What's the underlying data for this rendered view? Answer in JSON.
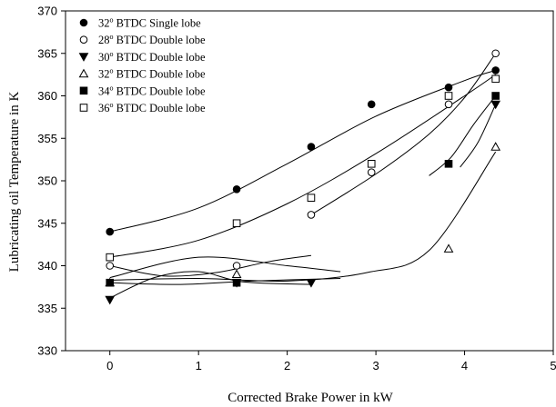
{
  "chart_data": {
    "type": "scatter",
    "title": "",
    "xlabel": "Corrected Brake Power in kW",
    "ylabel": "Lubricating oil Temperature in K",
    "xlim": [
      -0.5,
      5
    ],
    "ylim": [
      330,
      370
    ],
    "x_ticks": [
      0,
      1,
      2,
      3,
      4,
      5
    ],
    "y_ticks": [
      330,
      335,
      340,
      345,
      350,
      355,
      360,
      365,
      370
    ],
    "grid": false,
    "legend_position": "top-left",
    "curve_color": "#000000",
    "series": [
      {
        "name": "32° BTDC Single lobe",
        "name_parts": [
          "32",
          "o",
          " BTDC Single lobe"
        ],
        "marker": "filled-circle",
        "x": [
          0,
          1.43,
          2.27,
          2.95,
          3.82,
          4.35
        ],
        "y": [
          344,
          349,
          354,
          359,
          361,
          363
        ]
      },
      {
        "name": "28° BTDC Double lobe",
        "name_parts": [
          "28",
          "o",
          " BTDC Double lobe"
        ],
        "marker": "open-circle",
        "x": [
          0,
          1.43,
          2.27,
          2.95,
          3.82,
          4.35
        ],
        "y": [
          340,
          340,
          346,
          351,
          359,
          365
        ]
      },
      {
        "name": "30° BTDC Double lobe",
        "name_parts": [
          "30",
          "o",
          " BTDC Double lobe"
        ],
        "marker": "filled-triangle-down",
        "x": [
          0,
          1.43,
          2.27,
          4.35
        ],
        "y": [
          336,
          338,
          338,
          359
        ]
      },
      {
        "name": "32° BTDC Double lobe",
        "name_parts": [
          "32",
          "o",
          " BTDC Double lobe"
        ],
        "marker": "open-triangle-up",
        "x": [
          0,
          1.43,
          3.82,
          4.35
        ],
        "y": [
          338,
          339,
          342,
          354
        ]
      },
      {
        "name": "34° BTDC Double lobe",
        "name_parts": [
          "34",
          "o",
          " BTDC Double lobe"
        ],
        "marker": "filled-square",
        "x": [
          0,
          1.43,
          3.82,
          4.35
        ],
        "y": [
          338,
          338,
          352,
          360
        ]
      },
      {
        "name": "36° BTDC Double lobe",
        "name_parts": [
          "36",
          "o",
          " BTDC Double lobe"
        ],
        "marker": "open-square",
        "x": [
          0,
          1.43,
          2.27,
          2.95,
          3.82,
          4.35
        ],
        "y": [
          341,
          345,
          348,
          352,
          360,
          362
        ]
      }
    ],
    "fit_curves": [
      {
        "series": "32° BTDC Single lobe",
        "x": [
          0,
          1,
          2,
          3,
          4,
          4.35
        ],
        "y": [
          344,
          346.8,
          352,
          357.6,
          361.8,
          363
        ]
      },
      {
        "series": "36° BTDC Double lobe",
        "x": [
          0,
          1,
          2,
          3,
          4,
          4.35
        ],
        "y": [
          341,
          343,
          347.3,
          353.2,
          360,
          362.5
        ]
      },
      {
        "series": "28° BTDC Double lobe",
        "x": [
          2.27,
          3,
          3.6,
          4,
          4.35
        ],
        "y": [
          346,
          350.8,
          355.5,
          359.8,
          365
        ]
      },
      {
        "series": "34° BTDC Double lobe",
        "x": [
          3.6,
          3.85,
          4.1,
          4.35
        ],
        "y": [
          350.6,
          352.8,
          356.6,
          360
        ]
      },
      {
        "series": "30° BTDC Double lobe",
        "x": [
          3.95,
          4.15,
          4.35
        ],
        "y": [
          351.6,
          354.5,
          359
        ]
      },
      {
        "series": "32° BTDC Double lobe",
        "x": [
          0,
          1,
          2,
          2.9,
          3.6,
          4.35
        ],
        "y": [
          338.3,
          338.5,
          338.2,
          339.2,
          341.8,
          353.4
        ]
      },
      {
        "series": "28° BTDC Double lobe",
        "x": [
          0,
          0.6,
          1.2,
          1.8,
          2.27
        ],
        "y": [
          340,
          338.8,
          339.2,
          340.5,
          341.2
        ]
      },
      {
        "series": "30° BTDC Double lobe",
        "x": [
          0,
          0.5,
          1,
          1.5,
          2.27
        ],
        "y": [
          336.2,
          338.6,
          339.3,
          338.1,
          337.8
        ]
      },
      {
        "series": "34° BTDC Double lobe",
        "x": [
          0,
          0.8,
          1.6,
          2.6
        ],
        "y": [
          338,
          337.8,
          338.2,
          338.5
        ]
      },
      {
        "series": "36° BTDC Double lobe",
        "x": [
          0,
          1,
          2,
          2.6
        ],
        "y": [
          338.6,
          341,
          340,
          339.3
        ]
      }
    ]
  }
}
